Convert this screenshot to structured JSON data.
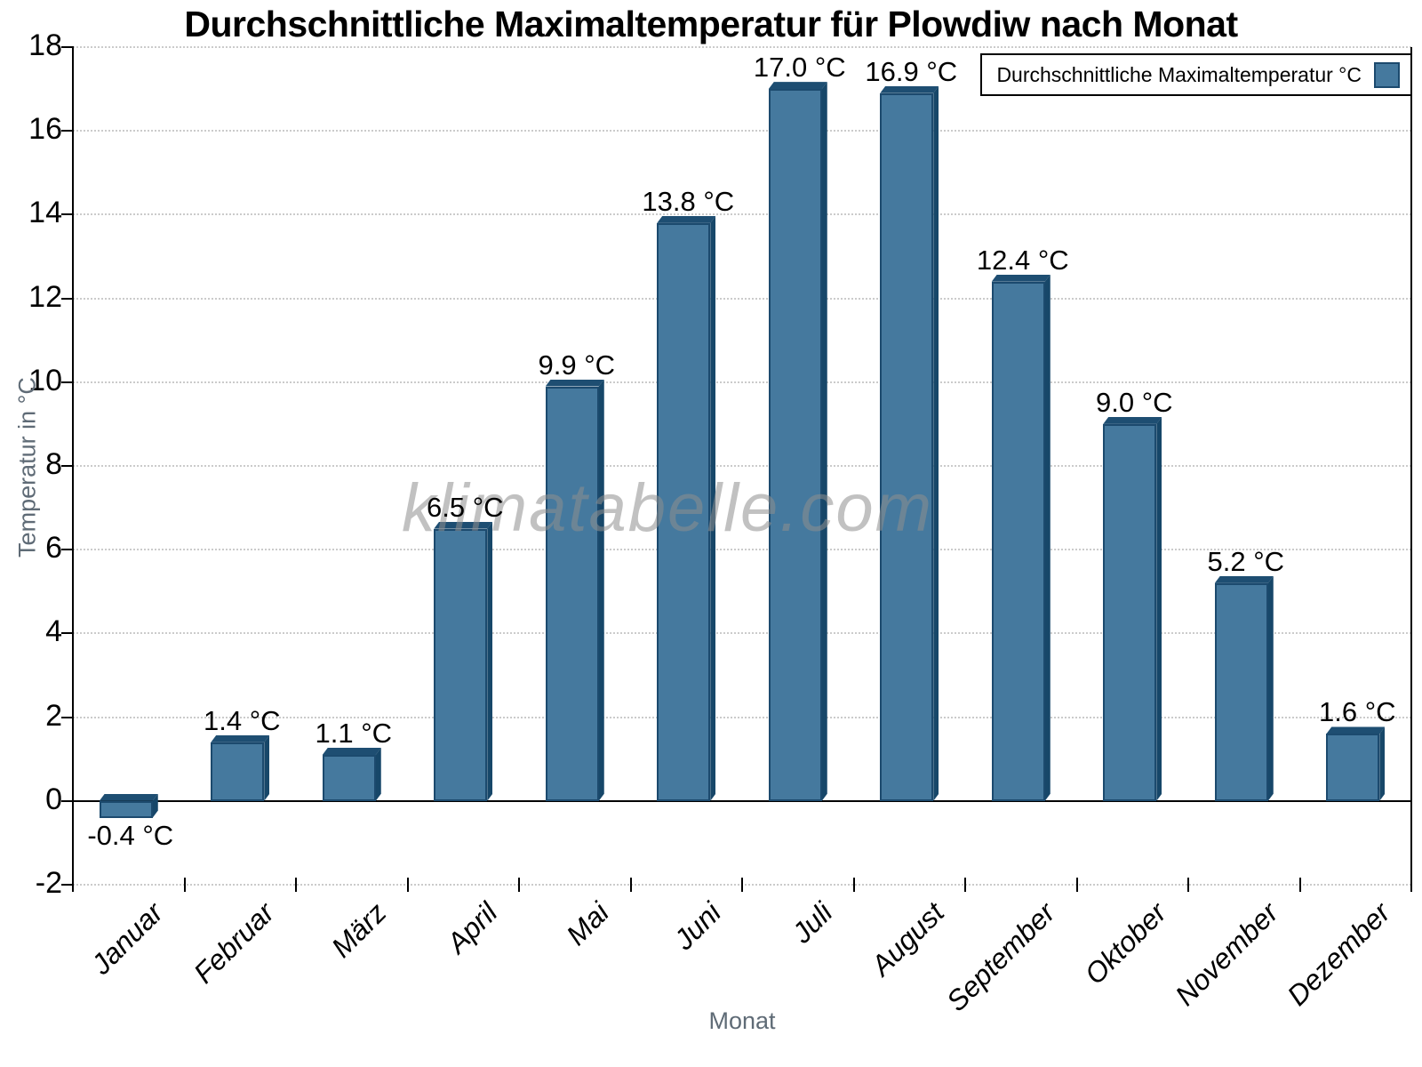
{
  "chart_data": {
    "type": "bar",
    "title": "Durchschnittliche Maximaltemperatur für Plowdiw nach Monat",
    "categories": [
      "Januar",
      "Februar",
      "März",
      "April",
      "Mai",
      "Juni",
      "Juli",
      "August",
      "September",
      "Oktober",
      "November",
      "Dezember"
    ],
    "values": [
      -0.4,
      1.4,
      1.1,
      6.5,
      9.9,
      13.8,
      17.0,
      16.9,
      12.4,
      9.0,
      5.2,
      1.6
    ],
    "value_labels": [
      "-0.4 °C",
      "1.4 °C",
      "1.1 °C",
      "6.5 °C",
      "9.9 °C",
      "13.8 °C",
      "17.0 °C",
      "16.9 °C",
      "12.4 °C",
      "9.0 °C",
      "5.2 °C",
      "1.6 °C"
    ],
    "xlabel": "Monat",
    "ylabel": "Temperatur in °C",
    "ylim": [
      -2,
      18
    ],
    "ytick_step": 2,
    "grid": true,
    "legend": {
      "label": "Durchschnittliche Maximaltemperatur °C",
      "position": "top-right"
    },
    "watermark": "klimatabelle.com",
    "colors": {
      "bar_face": "#45799E",
      "bar_edge": "#1C4A6E",
      "bar_top": "#1E4E72",
      "bar_side": "#174769",
      "grid_line": "#cbcbcb",
      "axis_line": "#000000",
      "tick_text": "#000000",
      "muted_text": "#5f6b76",
      "watermark_text": "#8f8f8f"
    }
  }
}
